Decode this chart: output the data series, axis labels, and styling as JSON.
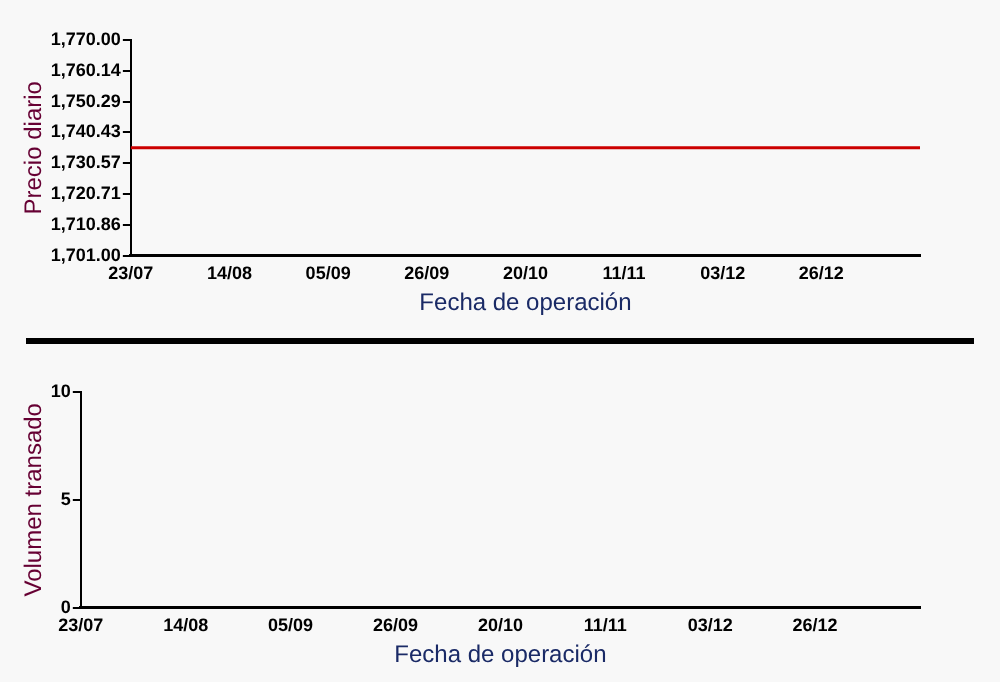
{
  "chart_data": [
    {
      "type": "line",
      "xlabel": "Fecha de operación",
      "ylabel": "Precio diario",
      "categories": [
        "23/07",
        "14/08",
        "05/09",
        "26/09",
        "20/10",
        "11/11",
        "03/12",
        "26/12",
        null
      ],
      "series": [
        {
          "color": "#cc0000",
          "values": [
            1735.5,
            1735.5,
            1735.5,
            1735.5,
            1735.5,
            1735.5,
            1735.5,
            1735.5,
            1735.5
          ]
        }
      ],
      "ylim": [
        1701,
        1770
      ],
      "yticks": [
        {
          "value": 1701,
          "label": "1,701.00"
        },
        {
          "value": 1710.86,
          "label": "1,710.86"
        },
        {
          "value": 1720.71,
          "label": "1,720.71"
        },
        {
          "value": 1730.57,
          "label": "1,730.57"
        },
        {
          "value": 1740.43,
          "label": "1,740.43"
        },
        {
          "value": 1750.29,
          "label": "1,750.29"
        },
        {
          "value": 1760.14,
          "label": "1,760.14"
        },
        {
          "value": 1770,
          "label": "1,770.00"
        }
      ],
      "marker": "none"
    },
    {
      "type": "bar",
      "xlabel": "Fecha de operación",
      "ylabel": "Volumen transado",
      "categories": [
        "23/07",
        "14/08",
        "05/09",
        "26/09",
        "20/10",
        "11/11",
        "03/12",
        "26/12",
        null
      ],
      "values": [
        null,
        null,
        null,
        null,
        null,
        null,
        null,
        null,
        null
      ],
      "ylim": [
        0,
        10
      ],
      "yticks": [
        0,
        5,
        10
      ]
    }
  ]
}
